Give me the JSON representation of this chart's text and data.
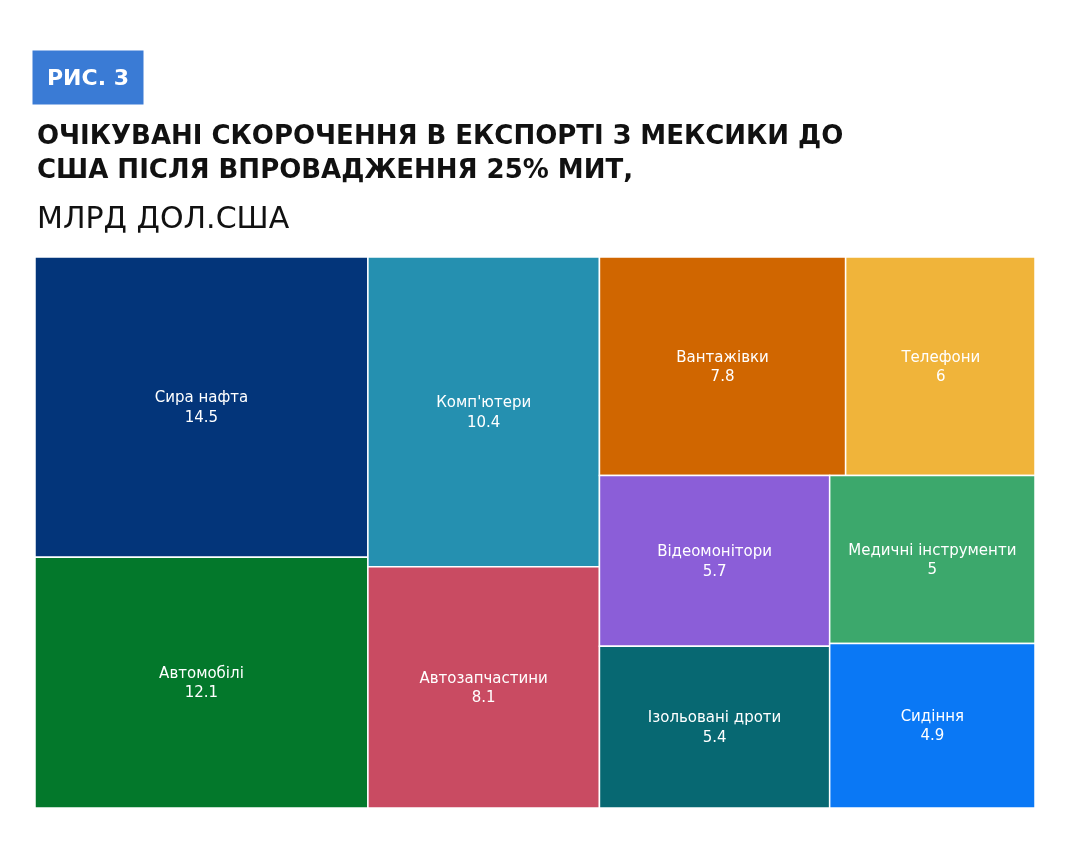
{
  "chart_data": {
    "type": "other",
    "title": "ОЧІКУВАНІ СКОРОЧЕННЯ В ЕКСПОРТІ З МЕКСИКИ ДО США ПІСЛЯ ВПРОВАДЖЕННЯ 25% МИТ,",
    "subtitle": "МЛРД ДОЛ.США",
    "data_labels": true,
    "annotations": [
      "РИС. 3"
    ],
    "categories": [
      "Сира нафта",
      "Автомобілі",
      "Комп'ютери",
      "Автозапчастини",
      "Вантажівки",
      "Телефони",
      "Відеомонітори",
      "Ізольовані дроти",
      "Медичні інструменти",
      "Сидіння"
    ],
    "values": [
      14.5,
      12.1,
      10.4,
      8.1,
      7.8,
      6,
      5.7,
      5.4,
      5,
      4.9
    ],
    "colors": [
      "#03357a",
      "#03782b",
      "#2590b0",
      "#c94b62",
      "#d06600",
      "#f0b43a",
      "#8b5ed8",
      "#076872",
      "#3ca86c",
      "#0a78f5"
    ]
  }
}
